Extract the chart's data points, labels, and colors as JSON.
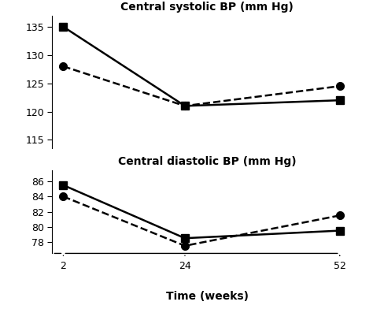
{
  "top_title": "Central systolic BP (mm Hg)",
  "bottom_title": "Central diastolic BP (mm Hg)",
  "xlabel": "Time (weeks)",
  "x": [
    2,
    24,
    52
  ],
  "systolic_solid": [
    135,
    121,
    122
  ],
  "systolic_dashed": [
    128,
    121,
    124.5
  ],
  "diastolic_solid": [
    85.5,
    78.5,
    79.5
  ],
  "diastolic_dashed": [
    84,
    77.5,
    81.5
  ],
  "systolic_ylim": [
    113.5,
    137
  ],
  "systolic_yticks": [
    115,
    120,
    125,
    130,
    135
  ],
  "diastolic_ylim": [
    76.5,
    87.5
  ],
  "diastolic_yticks": [
    78,
    80,
    82,
    84,
    86
  ],
  "line_color": "#000000",
  "marker_solid": "s",
  "marker_dashed": "o",
  "markersize": 7,
  "linewidth": 1.8,
  "background_color": "#ffffff"
}
